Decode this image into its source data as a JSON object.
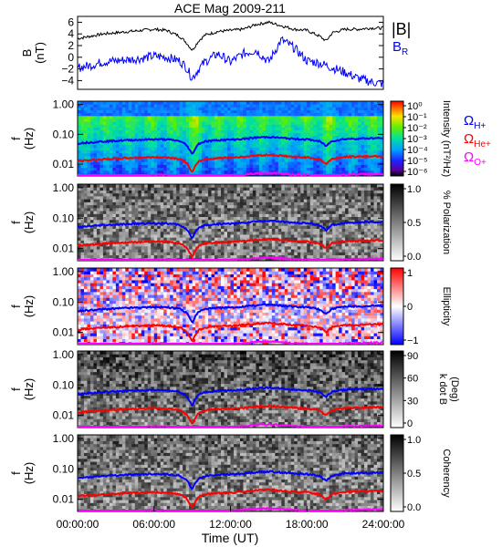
{
  "chart_data": [
    {
      "type": "line",
      "title": "ACE Mag 2009-211",
      "ylabel": [
        "B",
        "(nT)"
      ],
      "yticks": [
        "6",
        "4",
        "2",
        "0",
        "−2",
        "−4"
      ],
      "ylim": [
        -5.5,
        7
      ],
      "legend": [
        "|B|",
        "B_R"
      ],
      "series": [
        {
          "name": "|B|",
          "color": "#000000",
          "x": [
            0,
            1,
            2,
            3,
            4,
            5,
            6,
            7,
            8,
            8.5,
            9,
            9.5,
            10,
            11,
            12,
            13,
            14,
            15,
            16,
            17,
            18,
            19,
            19.5,
            20,
            21,
            22,
            23,
            24
          ],
          "y": [
            3.2,
            3.6,
            4.0,
            4.2,
            4.4,
            4.6,
            4.8,
            4.6,
            3.6,
            2.6,
            1.2,
            2.8,
            3.8,
            4.4,
            4.6,
            4.8,
            5.6,
            6.0,
            5.4,
            4.8,
            4.6,
            3.6,
            2.8,
            4.2,
            4.8,
            4.8,
            5.0,
            5.0
          ]
        },
        {
          "name": "B_R",
          "color": "#0000ff",
          "x": [
            0,
            1,
            2,
            3,
            4,
            5,
            6,
            7,
            8,
            8.5,
            9,
            9.5,
            10,
            11,
            12,
            13,
            14,
            15,
            16,
            17,
            18,
            19,
            19.5,
            20,
            21,
            22,
            23,
            24
          ],
          "y": [
            -1.8,
            -1.4,
            -0.8,
            -0.6,
            -0.4,
            -0.2,
            0.2,
            0.0,
            -0.6,
            -1.6,
            -3.6,
            -2.0,
            -0.8,
            0.6,
            -0.8,
            0.6,
            1.2,
            -0.8,
            3.0,
            1.6,
            -0.6,
            -1.0,
            -1.4,
            -1.8,
            -2.6,
            -3.6,
            -4.2,
            -4.6
          ]
        }
      ]
    },
    {
      "type": "heatmap",
      "title": "Intensity",
      "ylabel": [
        "f",
        "(Hz)"
      ],
      "yticks": [
        "1.00",
        "0.10",
        "0.01"
      ],
      "colorbar": {
        "label": "Intensity (nT²/Hz)",
        "ticks": [
          "10⁰",
          "10⁻¹",
          "10⁻²",
          "10⁻³",
          "10⁻⁴",
          "10⁻⁵",
          "10⁻⁶"
        ],
        "colormap": "rainbow",
        "range_log10": [
          -6,
          0
        ]
      },
      "overlay": [
        "ΩH+",
        "ΩHe+",
        "ΩO+"
      ]
    },
    {
      "type": "heatmap",
      "title": "% Polarization",
      "ylabel": [
        "f",
        "(Hz)"
      ],
      "yticks": [
        "1.00",
        "0.10",
        "0.01"
      ],
      "colorbar": {
        "label": "% Polarization",
        "ticks": [
          "1.0",
          "0.5",
          "0.0"
        ],
        "colormap": "grayscale",
        "range": [
          0,
          1
        ]
      }
    },
    {
      "type": "heatmap",
      "title": "Ellipticity",
      "ylabel": [
        "f",
        "(Hz)"
      ],
      "yticks": [
        "1.00",
        "0.10",
        "0.01"
      ],
      "colorbar": {
        "label": "Ellipticity",
        "ticks": [
          "1",
          "0",
          "−1"
        ],
        "colormap": "blue-white-red",
        "range": [
          -1,
          1
        ]
      }
    },
    {
      "type": "heatmap",
      "title": "k dot B",
      "ylabel": [
        "f",
        "(Hz)"
      ],
      "yticks": [
        "1.00",
        "0.10",
        "0.01"
      ],
      "colorbar": {
        "label": [
          "k dot B",
          "(Deg)"
        ],
        "ticks": [
          "90",
          "60",
          "30",
          "0"
        ],
        "colormap": "grayscale",
        "range": [
          0,
          90
        ]
      }
    },
    {
      "type": "heatmap",
      "title": "Coherency",
      "ylabel": [
        "f",
        "(Hz)"
      ],
      "yticks": [
        "1.00",
        "0.10",
        "0.01"
      ],
      "colorbar": {
        "label": "Coherency",
        "ticks": [
          "1.0",
          "0.5",
          "0.0"
        ],
        "colormap": "grayscale",
        "range": [
          0,
          1
        ]
      }
    }
  ],
  "gyrofreq_overlays": {
    "x": [
      0,
      1,
      2,
      3,
      4,
      5,
      6,
      7,
      8,
      8.5,
      9,
      9.5,
      10,
      11,
      12,
      13,
      14,
      15,
      16,
      17,
      18,
      19,
      19.5,
      20,
      21,
      22,
      23,
      24
    ],
    "series": [
      {
        "name": "ΩH+",
        "color": "#0000ff",
        "y": [
          0.05,
          0.054,
          0.058,
          0.061,
          0.064,
          0.066,
          0.068,
          0.067,
          0.06,
          0.045,
          0.02,
          0.048,
          0.058,
          0.064,
          0.066,
          0.07,
          0.078,
          0.082,
          0.076,
          0.07,
          0.068,
          0.058,
          0.04,
          0.06,
          0.07,
          0.072,
          0.074,
          0.074
        ]
      },
      {
        "name": "ΩHe+",
        "color": "#ff0000",
        "y": [
          0.0125,
          0.0135,
          0.0145,
          0.0152,
          0.016,
          0.0165,
          0.017,
          0.0168,
          0.015,
          0.0112,
          0.005,
          0.012,
          0.0145,
          0.016,
          0.0165,
          0.0175,
          0.0195,
          0.0205,
          0.019,
          0.0175,
          0.017,
          0.0145,
          0.01,
          0.015,
          0.0175,
          0.018,
          0.0185,
          0.0185
        ]
      },
      {
        "name": "ΩO+",
        "color": "#ff00ff",
        "y": [
          0.0031,
          0.0034,
          0.0036,
          0.0038,
          0.004,
          0.0041,
          0.0043,
          0.0042,
          0.0037,
          0.0028,
          0.0013,
          0.003,
          0.0036,
          0.004,
          0.0041,
          0.0044,
          0.0049,
          0.0051,
          0.0048,
          0.0044,
          0.0043,
          0.0036,
          0.0025,
          0.0038,
          0.0044,
          0.0045,
          0.0046,
          0.0046
        ]
      }
    ]
  },
  "xaxis": {
    "ticks": [
      "00:00:00",
      "06:00:00",
      "12:00:00",
      "18:00:00",
      "24:00:00"
    ],
    "label": "Time (UT)",
    "range": [
      0,
      24
    ]
  },
  "colors": {
    "h_plus": "#0000ff",
    "he_plus": "#ff0000",
    "o_plus": "#ff00ff",
    "absB": "#000000",
    "BR": "#0000ff"
  }
}
